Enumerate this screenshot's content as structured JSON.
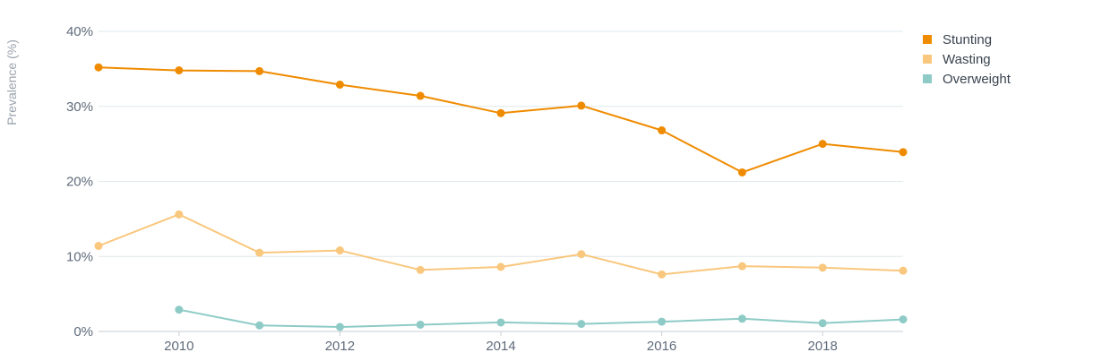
{
  "chart_data": {
    "type": "line",
    "title": "",
    "xlabel": "",
    "ylabel": "Prevalence (%)",
    "x": [
      2009,
      2010,
      2011,
      2012,
      2013,
      2014,
      2015,
      2016,
      2017,
      2018,
      2019
    ],
    "xlim": [
      2009,
      2019
    ],
    "ylim": [
      0,
      40
    ],
    "x_ticks": [
      {
        "value": 2010,
        "label": "2010"
      },
      {
        "value": 2012,
        "label": "2012"
      },
      {
        "value": 2014,
        "label": "2014"
      },
      {
        "value": 2016,
        "label": "2016"
      },
      {
        "value": 2018,
        "label": "2018"
      }
    ],
    "y_ticks": [
      {
        "value": 0,
        "label": "0%"
      },
      {
        "value": 10,
        "label": "10%"
      },
      {
        "value": 20,
        "label": "20%"
      },
      {
        "value": 30,
        "label": "30%"
      },
      {
        "value": 40,
        "label": "40%"
      }
    ],
    "grid": true,
    "legend_position": "top-right",
    "series": [
      {
        "name": "Stunting",
        "color": "#ef8b00",
        "x": [
          2009,
          2010,
          2011,
          2012,
          2013,
          2014,
          2015,
          2016,
          2017,
          2018,
          2019
        ],
        "values": [
          35.2,
          34.8,
          34.7,
          32.9,
          31.4,
          29.1,
          30.1,
          26.8,
          21.2,
          25.0,
          23.9
        ]
      },
      {
        "name": "Wasting",
        "color": "#f9c77d",
        "x": [
          2009,
          2010,
          2011,
          2012,
          2013,
          2014,
          2015,
          2016,
          2017,
          2018,
          2019
        ],
        "values": [
          11.4,
          15.6,
          10.5,
          10.8,
          8.2,
          8.6,
          10.3,
          7.6,
          8.7,
          8.5,
          8.1
        ]
      },
      {
        "name": "Overweight",
        "color": "#8ecbc6",
        "x": [
          2010,
          2011,
          2012,
          2013,
          2014,
          2015,
          2016,
          2017,
          2018,
          2019
        ],
        "values": [
          2.9,
          0.8,
          0.6,
          0.9,
          1.2,
          1.0,
          1.3,
          1.7,
          1.1,
          1.6
        ]
      }
    ]
  }
}
